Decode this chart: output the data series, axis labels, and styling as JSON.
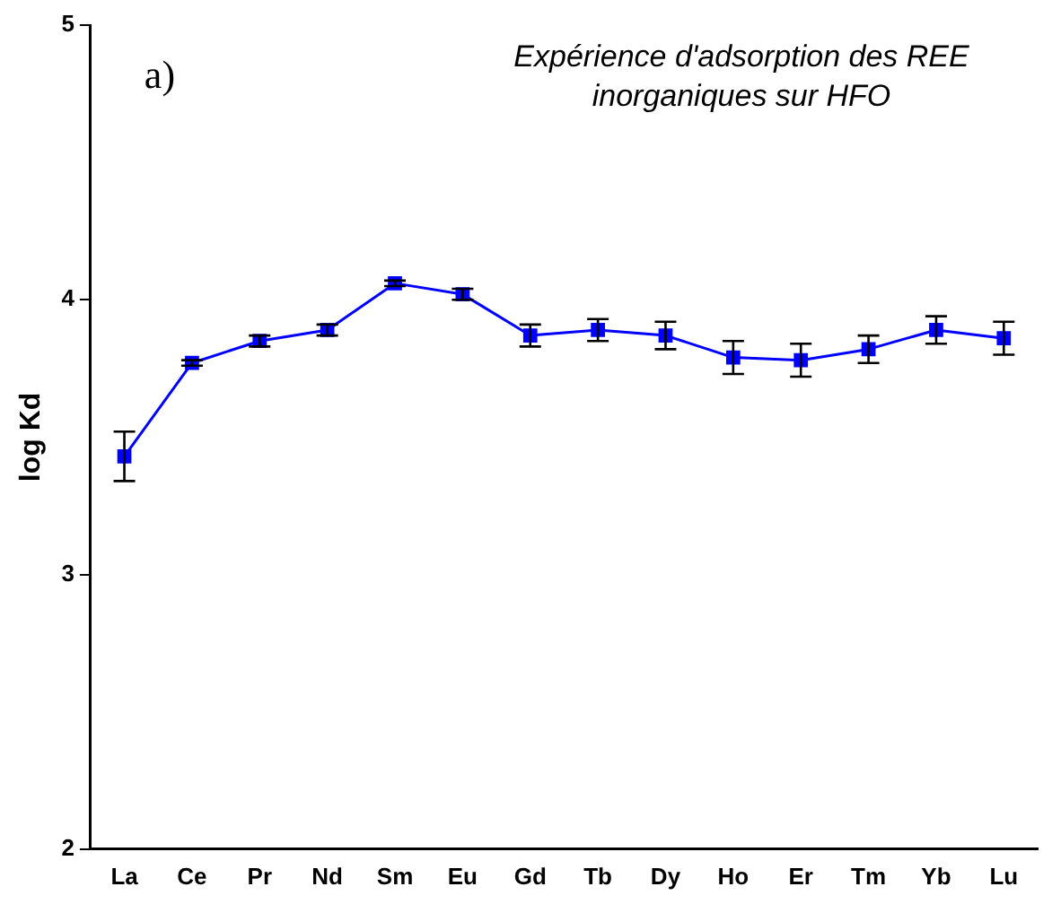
{
  "chart_data": {
    "type": "line",
    "title": "Expérience d'adsorption des REE inorganiques sur HFO",
    "ylabel": "log Kd",
    "annotations": [
      "a)"
    ],
    "categories": [
      "La",
      "Ce",
      "Pr",
      "Nd",
      "Sm",
      "Eu",
      "Gd",
      "Tb",
      "Dy",
      "Ho",
      "Er",
      "Tm",
      "Yb",
      "Lu"
    ],
    "series": [
      {
        "color": "#0000ff",
        "values": [
          3.43,
          3.77,
          3.85,
          3.89,
          4.06,
          4.02,
          3.87,
          3.89,
          3.87,
          3.79,
          3.78,
          3.82,
          3.89,
          3.86
        ],
        "errors": [
          0.09,
          0.01,
          0.02,
          0.02,
          0.01,
          0.02,
          0.04,
          0.04,
          0.05,
          0.06,
          0.06,
          0.05,
          0.05,
          0.06
        ]
      }
    ],
    "ylim": [
      2,
      5
    ],
    "yticks": [
      2,
      3,
      4,
      5
    ],
    "grid": false,
    "legend": false,
    "marker": "square",
    "line_style": "solid"
  }
}
